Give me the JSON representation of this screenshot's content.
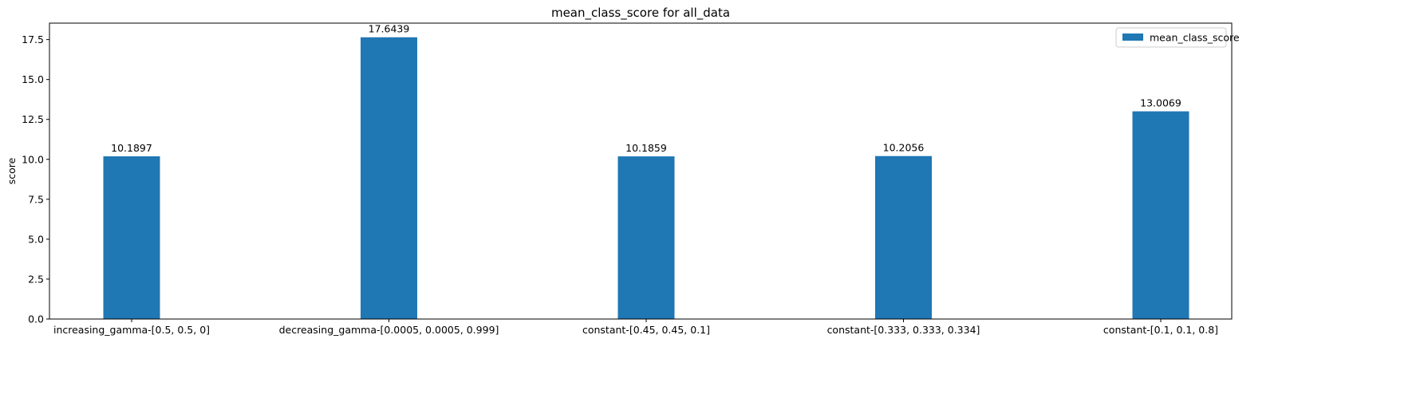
{
  "chart_data": {
    "type": "bar",
    "title": "mean_class_score for all_data",
    "xlabel": "",
    "ylabel": "score",
    "categories": [
      "increasing_gamma-[0.5, 0.5, 0]",
      "decreasing_gamma-[0.0005, 0.0005, 0.999]",
      "constant-[0.45, 0.45, 0.1]",
      "constant-[0.333, 0.333, 0.334]",
      "constant-[0.1, 0.1, 0.8]"
    ],
    "series": [
      {
        "name": "mean_class_score",
        "values": [
          10.1897,
          17.6439,
          10.1859,
          10.2056,
          13.0069
        ],
        "value_labels": [
          "10.1897",
          "17.6439",
          "10.1859",
          "10.2056",
          "13.0069"
        ],
        "color": "#1f77b4"
      }
    ],
    "ylim": [
      0,
      18.53
    ],
    "yticks": [
      0,
      2.5,
      5,
      7.5,
      10,
      12.5,
      15,
      17.5
    ],
    "ytick_labels": [
      "0.0",
      "2.5",
      "5.0",
      "7.5",
      "10.0",
      "12.5",
      "15.0",
      "17.5"
    ],
    "grid": false,
    "legend_position": "top-right"
  }
}
